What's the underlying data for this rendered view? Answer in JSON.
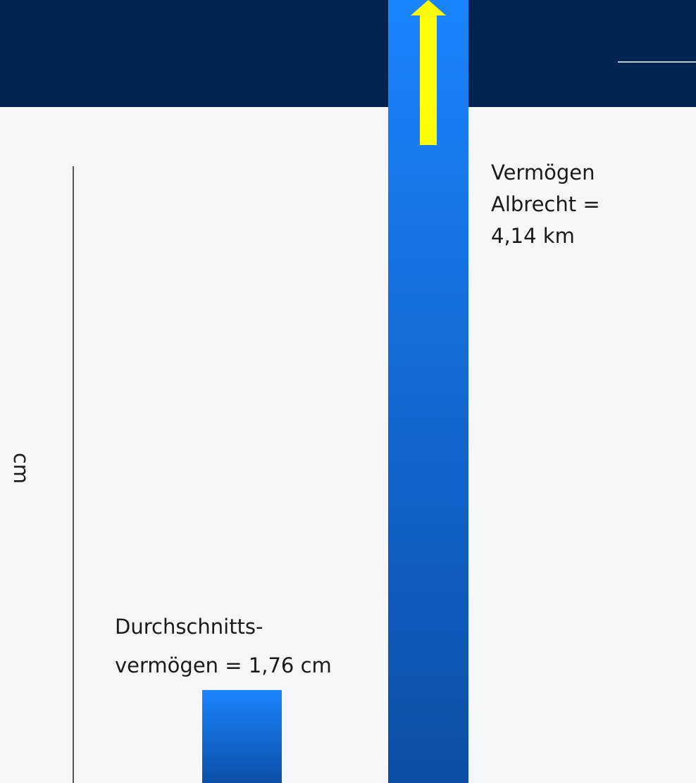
{
  "axis_label": "cm",
  "labels": [
    {
      "lines": [
        "Durchschnitts-",
        "vermögen = 1,76 cm"
      ]
    },
    {
      "lines": [
        "Vermögen",
        "Albrecht =",
        "4,14 km"
      ]
    }
  ]
}
